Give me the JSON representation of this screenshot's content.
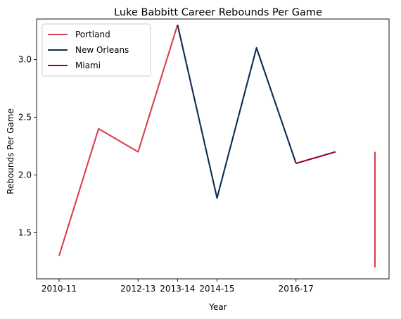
{
  "chart_data": {
    "type": "line",
    "title": "Luke Babbitt Career Rebounds Per Game",
    "xlabel": "Year",
    "ylabel": "Rebounds Per Game",
    "x": [
      "2010-11",
      "2011-12",
      "2012-13",
      "2013-14",
      "2014-15",
      "2015-16",
      "2016-17",
      "2017-18",
      "2017-18"
    ],
    "x_tick_labels": [
      "2010-11",
      "2012-13",
      "2013-14",
      "2014-15",
      "2016-17"
    ],
    "y_tick_labels": [
      "1.5",
      "2.0",
      "2.5",
      "3.0"
    ],
    "ylim": [
      1.1,
      3.35
    ],
    "grid": false,
    "legend_position": "top-left",
    "series": [
      {
        "name": "Portland",
        "color": "#d9404b",
        "points": [
          {
            "x": "2010-11",
            "y": 1.3
          },
          {
            "x": "2011-12",
            "y": 2.4
          },
          {
            "x": "2012-13",
            "y": 2.2
          },
          {
            "x": "2013-14",
            "y": 3.3
          }
        ]
      },
      {
        "name": "New Orleans",
        "color": "#0c2c56",
        "points": [
          {
            "x": "2013-14",
            "y": 3.3
          },
          {
            "x": "2014-15",
            "y": 1.8
          },
          {
            "x": "2015-16",
            "y": 3.1
          },
          {
            "x": "2016-17",
            "y": 2.1
          }
        ]
      },
      {
        "name": "Miami",
        "color": "#98002e",
        "points": [
          {
            "x": "2016-17",
            "y": 2.1
          },
          {
            "x": "2017-18",
            "y": 2.2
          }
        ]
      },
      {
        "name": "",
        "color": "#d9404b",
        "points": [
          {
            "x": "2017-18",
            "y": 2.2
          },
          {
            "x": "2017-18",
            "y": 1.2
          }
        ]
      }
    ]
  }
}
